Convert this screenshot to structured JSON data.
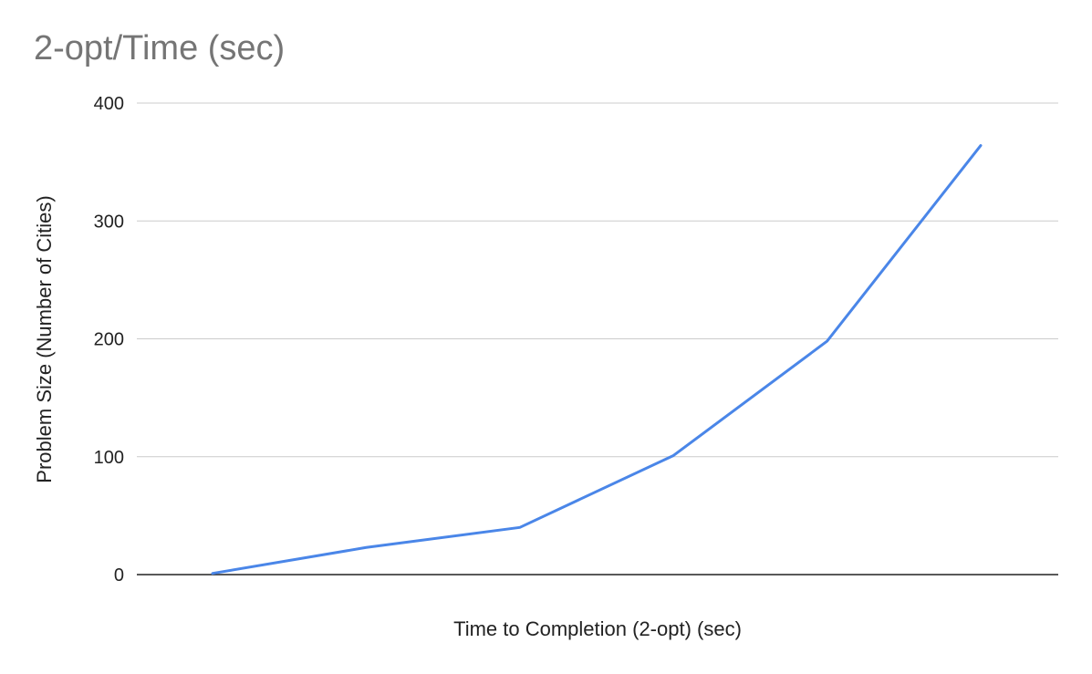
{
  "chart_data": {
    "type": "line",
    "title": "2-opt/Time (sec)",
    "xlabel": "Time to Completion (2-opt) (sec)",
    "ylabel": "Problem Size (Number of Cities)",
    "ylim": [
      0,
      400
    ],
    "yticks": [
      0,
      100,
      200,
      300,
      400
    ],
    "grid": true,
    "legend": "none",
    "series": [
      {
        "values": [
          1,
          23,
          40,
          101,
          198,
          364
        ]
      }
    ]
  },
  "colors": {
    "line": "#4a86e8",
    "grid": "#cccccc",
    "baseline": "#222222",
    "title": "#757575"
  }
}
